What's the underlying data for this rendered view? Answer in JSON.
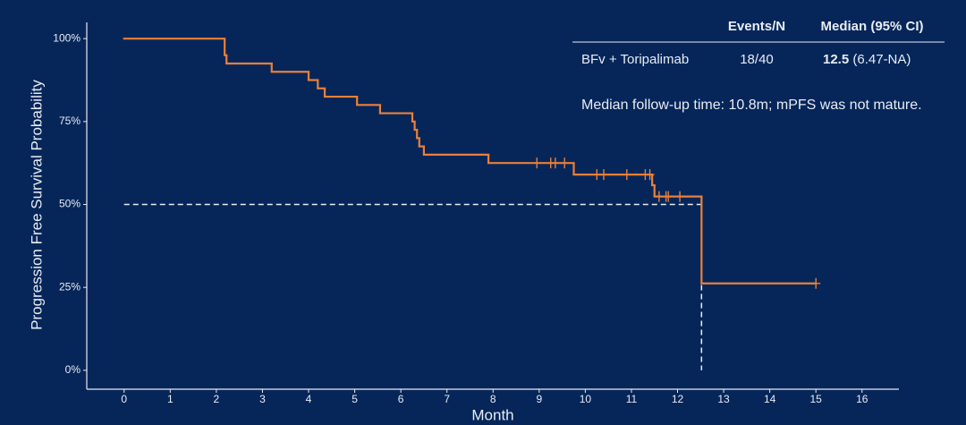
{
  "chart_data": {
    "type": "km",
    "y_label": "Progression Free Survival Probability",
    "x_label": "Month",
    "color": "#e8803a",
    "x": [
      0,
      2.18,
      2.22,
      3.2,
      4.0,
      4.2,
      4.35,
      5.05,
      5.55,
      6.25,
      6.3,
      6.35,
      6.4,
      6.5,
      7.9,
      9.75,
      11.45,
      11.5,
      12.52
    ],
    "values": [
      100,
      95,
      92.5,
      90,
      87.5,
      85,
      82.5,
      80,
      77.5,
      75,
      72.5,
      70,
      67.5,
      65,
      62.5,
      59,
      55.8,
      52.4,
      26.2
    ],
    "censor_x": [
      8.95,
      9.25,
      9.35,
      9.55,
      10.25,
      10.4,
      10.9,
      11.3,
      11.4,
      11.6,
      11.75,
      11.8,
      12.05,
      15.0
    ],
    "censor_values": [
      62.5,
      62.5,
      62.5,
      62.5,
      59,
      59,
      59,
      59,
      59,
      52.4,
      52.4,
      52.4,
      52.4,
      26.2
    ],
    "median_line": {
      "x": 12.52,
      "y": 50
    },
    "xlim": [
      -0.81,
      16.8
    ],
    "ylim": [
      -5.7,
      104.9
    ],
    "xticks": [
      0,
      1,
      2,
      3,
      4,
      5,
      6,
      7,
      8,
      9,
      10,
      11,
      12,
      13,
      14,
      15,
      16
    ],
    "yticks": [
      {
        "value": 0,
        "label": "0%"
      },
      {
        "value": 25,
        "label": "25%"
      },
      {
        "value": 50,
        "label": "50%"
      },
      {
        "value": 75,
        "label": "75%"
      },
      {
        "value": 100,
        "label": "100%"
      }
    ],
    "table": {
      "header": [
        "Events/N",
        "Median (95% CI)"
      ],
      "row_label": "BFv + Toripalimab",
      "events": "18/40",
      "median": "12.5",
      "ci": "(6.47-NA)"
    },
    "annotation": "Median follow-up time: 10.8m; mPFS was not mature."
  }
}
